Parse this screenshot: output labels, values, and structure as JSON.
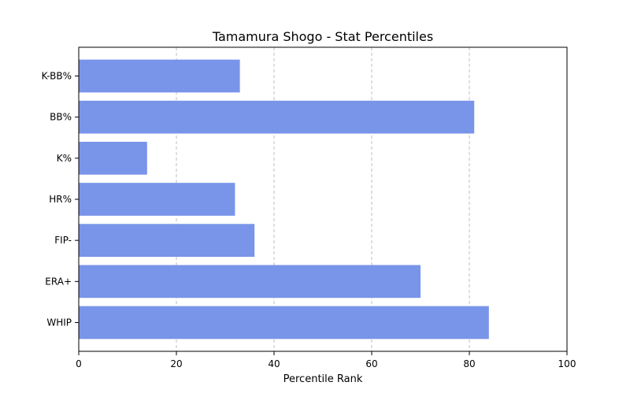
{
  "chart_data": {
    "type": "bar",
    "orientation": "horizontal",
    "title": "Tamamura Shogo - Stat Percentiles",
    "xlabel": "Percentile Rank",
    "ylabel": "",
    "categories": [
      "WHIP",
      "ERA+",
      "FIP-",
      "HR%",
      "K%",
      "BB%",
      "K-BB%"
    ],
    "values": [
      84,
      70,
      36,
      32,
      14,
      81,
      33
    ],
    "xlim": [
      0,
      100
    ],
    "xticks": [
      0,
      20,
      40,
      60,
      80,
      100
    ],
    "grid": "x-dashed",
    "bar_color": "#7995e9"
  }
}
